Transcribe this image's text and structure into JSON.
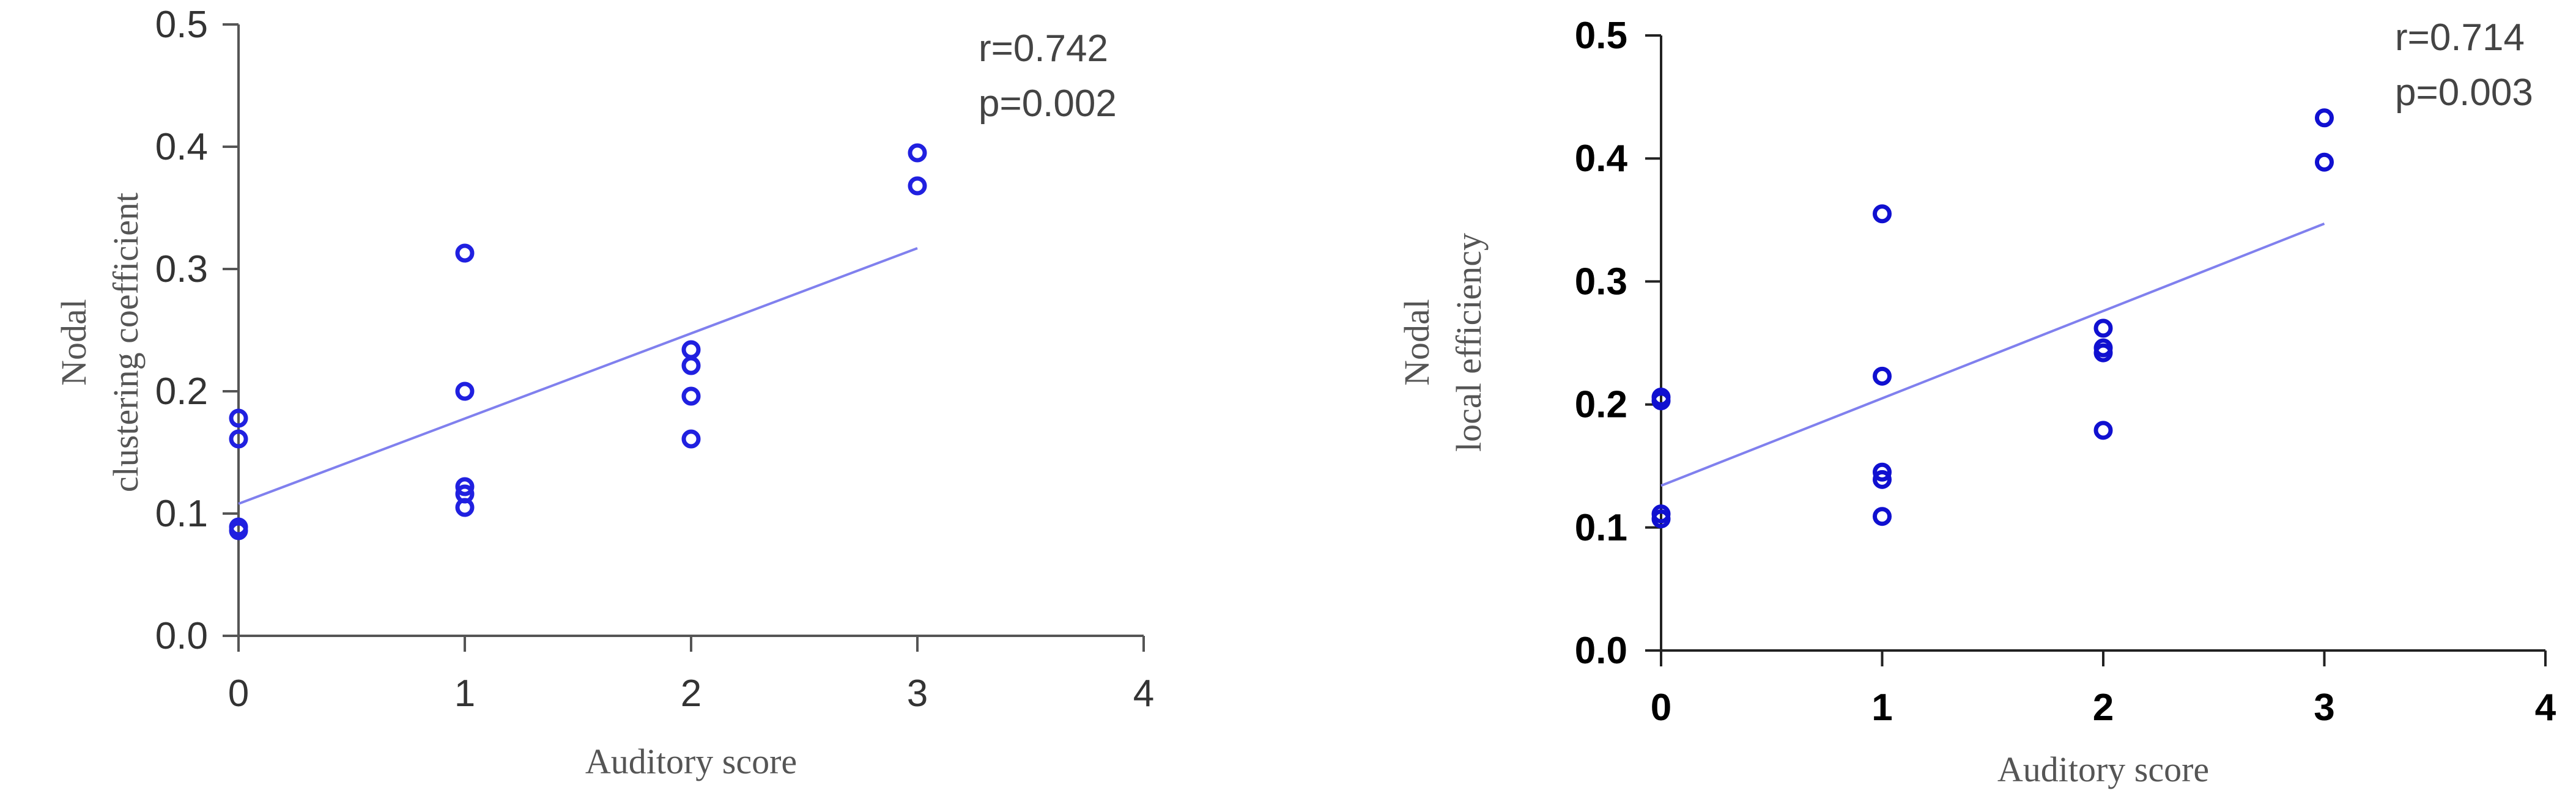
{
  "chart_data": [
    {
      "type": "scatter",
      "xlabel": "Auditory score",
      "ylabel_lines": [
        "Nodal",
        "clustering coefficient"
      ],
      "xlim": [
        0,
        4
      ],
      "ylim": [
        0,
        0.5
      ],
      "x_ticks": [
        "0",
        "1",
        "2",
        "3",
        "4"
      ],
      "y_ticks": [
        "0.0",
        "0.1",
        "0.2",
        "0.3",
        "0.4",
        "0.5"
      ],
      "grid": false,
      "bold_ticks": false,
      "annotation": [
        "r=0.742",
        "p=0.002"
      ],
      "points": [
        {
          "x": 0,
          "y": 0.178
        },
        {
          "x": 0,
          "y": 0.161
        },
        {
          "x": 0,
          "y": 0.089
        },
        {
          "x": 0,
          "y": 0.086
        },
        {
          "x": 1,
          "y": 0.313
        },
        {
          "x": 1,
          "y": 0.2
        },
        {
          "x": 1,
          "y": 0.122
        },
        {
          "x": 1,
          "y": 0.116
        },
        {
          "x": 1,
          "y": 0.105
        },
        {
          "x": 2,
          "y": 0.234
        },
        {
          "x": 2,
          "y": 0.221
        },
        {
          "x": 2,
          "y": 0.196
        },
        {
          "x": 2,
          "y": 0.161
        },
        {
          "x": 3,
          "y": 0.395
        },
        {
          "x": 3,
          "y": 0.368
        }
      ],
      "fit_line": {
        "x": [
          0,
          3
        ],
        "y": [
          0.108,
          0.317
        ]
      },
      "colors": {
        "points": "#2020e0",
        "fit_line": "#8080ee",
        "axis": "#555555"
      }
    },
    {
      "type": "scatter",
      "xlabel": "Auditory score",
      "ylabel_lines": [
        "Nodal",
        "local efficiency"
      ],
      "xlim": [
        0,
        4
      ],
      "ylim": [
        0,
        0.5
      ],
      "x_ticks": [
        "0",
        "1",
        "2",
        "3",
        "4"
      ],
      "y_ticks": [
        "0.0",
        "0.1",
        "0.2",
        "0.3",
        "0.4",
        "0.5"
      ],
      "grid": false,
      "bold_ticks": true,
      "annotation": [
        "r=0.714",
        "p=0.003"
      ],
      "points": [
        {
          "x": 0,
          "y": 0.206
        },
        {
          "x": 0,
          "y": 0.203
        },
        {
          "x": 0,
          "y": 0.111
        },
        {
          "x": 0,
          "y": 0.107
        },
        {
          "x": 1,
          "y": 0.355
        },
        {
          "x": 1,
          "y": 0.223
        },
        {
          "x": 1,
          "y": 0.145
        },
        {
          "x": 1,
          "y": 0.139
        },
        {
          "x": 1,
          "y": 0.109
        },
        {
          "x": 2,
          "y": 0.262
        },
        {
          "x": 2,
          "y": 0.246
        },
        {
          "x": 2,
          "y": 0.242
        },
        {
          "x": 2,
          "y": 0.179
        },
        {
          "x": 3,
          "y": 0.433
        },
        {
          "x": 3,
          "y": 0.397
        }
      ],
      "fit_line": {
        "x": [
          0,
          3
        ],
        "y": [
          0.134,
          0.347
        ]
      },
      "colors": {
        "points": "#1010d0",
        "fit_line": "#8080ee",
        "axis": "#222222"
      }
    }
  ]
}
